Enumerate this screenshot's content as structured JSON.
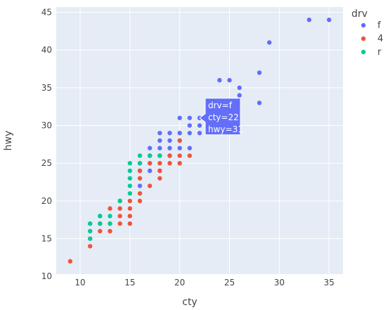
{
  "chart_data": {
    "type": "scatter",
    "title": "",
    "xlabel": "cty",
    "ylabel": "hwy",
    "xlim": [
      7.6,
      36.4
    ],
    "ylim": [
      10.3,
      45.7
    ],
    "x_ticks": [
      10,
      15,
      20,
      25,
      30,
      35
    ],
    "y_ticks": [
      10,
      15,
      20,
      25,
      30,
      35,
      40,
      45
    ],
    "grid": true,
    "legend": {
      "title": "drv",
      "position": "top-right"
    },
    "series": [
      {
        "name": "f",
        "color": "#636efa",
        "points": [
          [
            16,
            22
          ],
          [
            17,
            24
          ],
          [
            17,
            25
          ],
          [
            18,
            26
          ],
          [
            18,
            27
          ],
          [
            18,
            28
          ],
          [
            18,
            29
          ],
          [
            19,
            26
          ],
          [
            19,
            27
          ],
          [
            19,
            28
          ],
          [
            19,
            29
          ],
          [
            20,
            27
          ],
          [
            20,
            28
          ],
          [
            20,
            29
          ],
          [
            20,
            31
          ],
          [
            21,
            27
          ],
          [
            21,
            29
          ],
          [
            21,
            30
          ],
          [
            21,
            31
          ],
          [
            22,
            29
          ],
          [
            22,
            30
          ],
          [
            22,
            31
          ],
          [
            24,
            36
          ],
          [
            25,
            36
          ],
          [
            26,
            34
          ],
          [
            26,
            35
          ],
          [
            28,
            33
          ],
          [
            28,
            37
          ],
          [
            29,
            41
          ],
          [
            33,
            44
          ],
          [
            35,
            44
          ],
          [
            17,
            26
          ],
          [
            16,
            24
          ],
          [
            18,
            24
          ],
          [
            17,
            27
          ]
        ]
      },
      {
        "name": "4",
        "color": "#ef553b",
        "points": [
          [
            9,
            12
          ],
          [
            11,
            14
          ],
          [
            11,
            15
          ],
          [
            12,
            16
          ],
          [
            12,
            17
          ],
          [
            13,
            16
          ],
          [
            13,
            17
          ],
          [
            13,
            19
          ],
          [
            14,
            17
          ],
          [
            14,
            18
          ],
          [
            14,
            19
          ],
          [
            15,
            17
          ],
          [
            15,
            18
          ],
          [
            15,
            19
          ],
          [
            15,
            20
          ],
          [
            16,
            20
          ],
          [
            16,
            21
          ],
          [
            16,
            23
          ],
          [
            16,
            24
          ],
          [
            16,
            25
          ],
          [
            17,
            22
          ],
          [
            17,
            25
          ],
          [
            18,
            23
          ],
          [
            18,
            24
          ],
          [
            18,
            26
          ],
          [
            19,
            25
          ],
          [
            19,
            26
          ],
          [
            20,
            25
          ],
          [
            20,
            26
          ],
          [
            20,
            28
          ],
          [
            21,
            26
          ],
          [
            17,
            26
          ],
          [
            18,
            25
          ],
          [
            14,
            20
          ]
        ]
      },
      {
        "name": "r",
        "color": "#00cc96",
        "points": [
          [
            11,
            15
          ],
          [
            11,
            16
          ],
          [
            11,
            17
          ],
          [
            12,
            17
          ],
          [
            12,
            18
          ],
          [
            13,
            17
          ],
          [
            13,
            18
          ],
          [
            14,
            20
          ],
          [
            15,
            21
          ],
          [
            15,
            22
          ],
          [
            15,
            23
          ],
          [
            15,
            24
          ],
          [
            15,
            25
          ],
          [
            16,
            25
          ],
          [
            16,
            26
          ],
          [
            17,
            26
          ],
          [
            18,
            26
          ],
          [
            11,
            17
          ],
          [
            12,
            18
          ]
        ]
      }
    ],
    "hover": {
      "line1": "drv=f",
      "line2": "cty=22",
      "line3": "hwy=31",
      "x": 22,
      "y": 31
    }
  }
}
